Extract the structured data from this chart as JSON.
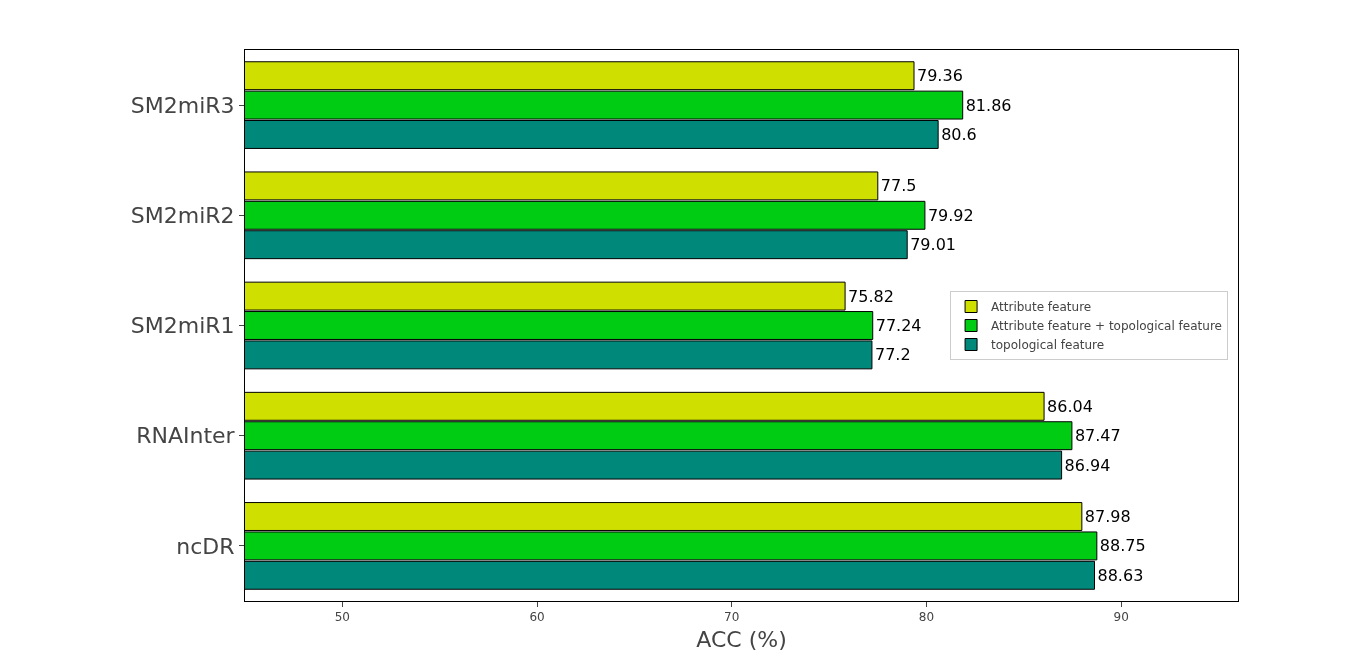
{
  "chart_data": {
    "type": "bar",
    "orientation": "horizontal",
    "xlabel": "ACC (%)",
    "categories": [
      "SM2miR3",
      "SM2miR2",
      "SM2miR1",
      "RNAInter",
      "ncDR"
    ],
    "series": [
      {
        "name": "Attribute feature",
        "color": "#cfe000",
        "values": [
          79.36,
          77.5,
          75.82,
          86.04,
          87.98
        ]
      },
      {
        "name": "Attribute feature + topological feature",
        "color": "#00cc14",
        "values": [
          81.86,
          79.92,
          77.24,
          87.47,
          88.75
        ]
      },
      {
        "name": "topological feature",
        "color": "#00897b",
        "values": [
          80.6,
          79.01,
          77.2,
          86.94,
          88.63
        ]
      }
    ],
    "xlim": [
      45,
      96
    ],
    "xticks": [
      50,
      60,
      70,
      80,
      90
    ],
    "data_labels": true,
    "grid": false,
    "legend": "right"
  }
}
